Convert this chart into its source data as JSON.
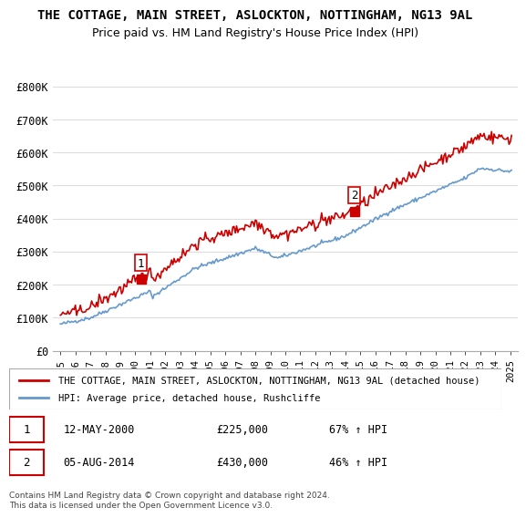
{
  "title": "THE COTTAGE, MAIN STREET, ASLOCKTON, NOTTINGHAM, NG13 9AL",
  "subtitle": "Price paid vs. HM Land Registry's House Price Index (HPI)",
  "sale1_date": "12-MAY-2000",
  "sale1_price": 225000,
  "sale1_pct": "67% ↑ HPI",
  "sale1_label": "1",
  "sale1_year": 2000.37,
  "sale2_date": "05-AUG-2014",
  "sale2_price": 430000,
  "sale2_pct": "46% ↑ HPI",
  "sale2_label": "2",
  "sale2_year": 2014.6,
  "legend_line1": "THE COTTAGE, MAIN STREET, ASLOCKTON, NOTTINGHAM, NG13 9AL (detached house)",
  "legend_line2": "HPI: Average price, detached house, Rushcliffe",
  "footer": "Contains HM Land Registry data © Crown copyright and database right 2024.\nThis data is licensed under the Open Government Licence v3.0.",
  "hpi_color": "#6699cc",
  "price_color": "#cc0000",
  "marker_color": "#cc0000",
  "ylim_min": 0,
  "ylim_max": 850000,
  "yticks": [
    0,
    100000,
    200000,
    300000,
    400000,
    500000,
    600000,
    700000,
    800000
  ],
  "ytick_labels": [
    "£0",
    "£100K",
    "£200K",
    "£300K",
    "£400K",
    "£500K",
    "£600K",
    "£700K",
    "£800K"
  ],
  "xlim_min": 1994.5,
  "xlim_max": 2025.5,
  "background_color": "#ffffff",
  "grid_color": "#dddddd"
}
